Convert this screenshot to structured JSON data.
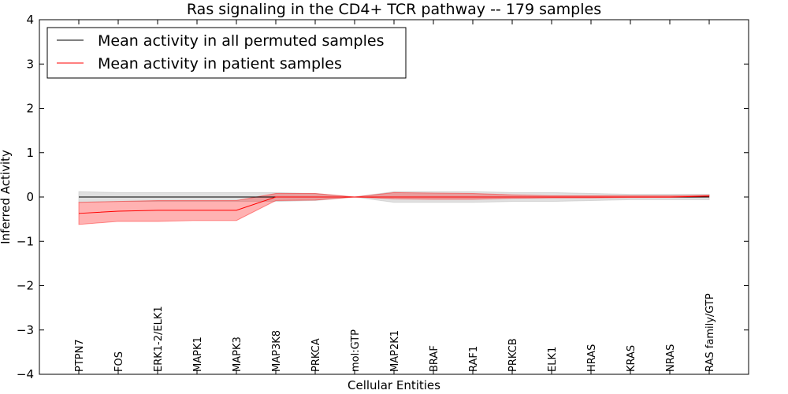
{
  "chart_data": {
    "type": "line",
    "title": "Ras signaling in the CD4+ TCR pathway -- 179 samples",
    "xlabel": "Cellular Entities",
    "ylabel": "Inferred Activity",
    "ylim": [
      -4,
      4
    ],
    "yticks": [
      "4",
      "3",
      "2",
      "1",
      "0",
      "−1",
      "−2",
      "−3",
      "−4"
    ],
    "ytick_values": [
      4,
      3,
      2,
      1,
      0,
      -1,
      -2,
      -3,
      -4
    ],
    "grid": false,
    "legend_position": "top-left",
    "categories": [
      "PTPN7",
      "FOS",
      "ERK1-2/ELK1",
      "MAPK1",
      "MAPK3",
      "MAP3K8",
      "PRKCA",
      "mol:GTP",
      "MAP2K1",
      "BRAF",
      "RAF1",
      "PRKCB",
      "ELK1",
      "HRAS",
      "KRAS",
      "NRAS",
      "RAS family/GTP"
    ],
    "series": [
      {
        "name": "Mean activity in all permuted samples",
        "color": "#000000",
        "band_color": "#bbbbbb",
        "values": [
          0,
          0,
          0,
          0,
          0,
          0,
          0,
          0,
          0,
          0,
          0,
          0,
          0,
          0,
          0,
          0,
          0
        ],
        "lower": [
          -0.12,
          -0.1,
          -0.1,
          -0.1,
          -0.1,
          -0.1,
          -0.08,
          0,
          -0.12,
          -0.12,
          -0.12,
          -0.1,
          -0.1,
          -0.08,
          -0.06,
          -0.06,
          -0.06
        ],
        "upper": [
          0.12,
          0.1,
          0.1,
          0.1,
          0.1,
          0.1,
          0.08,
          0,
          0.12,
          0.12,
          0.12,
          0.1,
          0.1,
          0.08,
          0.06,
          0.06,
          0.06
        ]
      },
      {
        "name": "Mean activity in patient samples",
        "color": "#ff0000",
        "band_color": "#ff0000",
        "values": [
          -0.37,
          -0.32,
          -0.3,
          -0.3,
          -0.3,
          0.0,
          0.0,
          0.0,
          0.0,
          0.0,
          0.0,
          0.0,
          0.0,
          0.0,
          0.0,
          0.0,
          0.02
        ],
        "lower": [
          -0.62,
          -0.55,
          -0.55,
          -0.53,
          -0.53,
          -0.08,
          -0.07,
          0.0,
          -0.04,
          -0.05,
          -0.05,
          -0.03,
          -0.02,
          -0.02,
          -0.01,
          -0.01,
          0.0
        ],
        "upper": [
          -0.12,
          -0.1,
          -0.08,
          -0.08,
          -0.08,
          0.08,
          0.08,
          0.0,
          0.1,
          0.09,
          0.08,
          0.05,
          0.03,
          0.03,
          0.03,
          0.03,
          0.04
        ]
      }
    ]
  }
}
